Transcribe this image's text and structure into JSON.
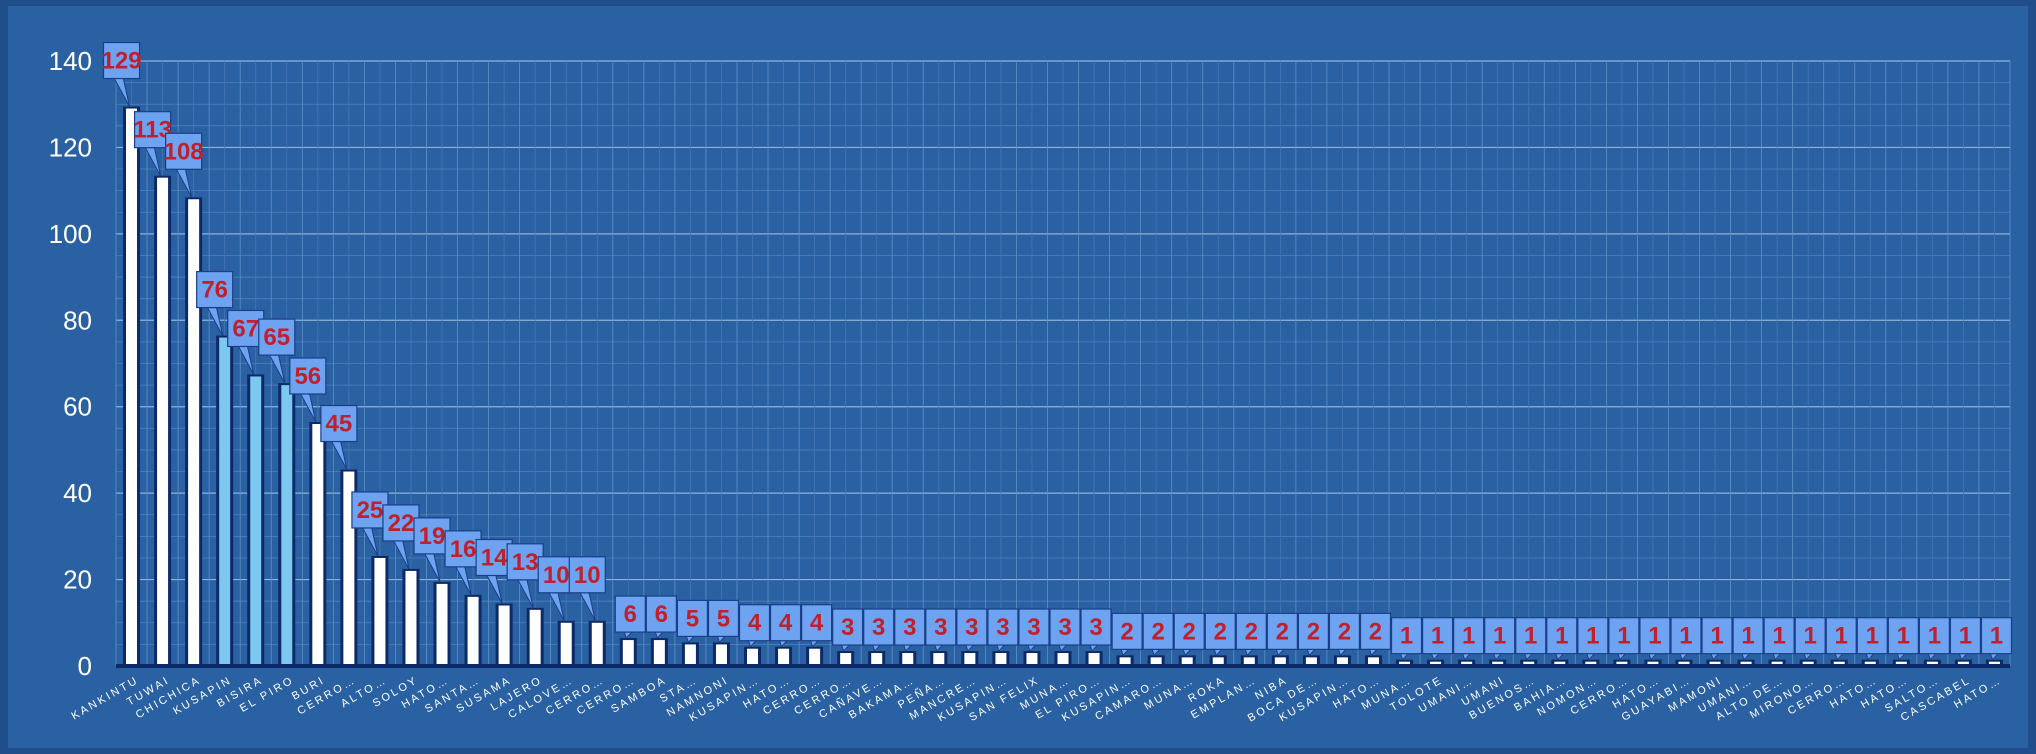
{
  "chart_data": {
    "type": "bar",
    "title": "",
    "xlabel": "",
    "ylabel": "",
    "ylim": [
      0,
      140
    ],
    "yticks": [
      0,
      20,
      40,
      60,
      80,
      100,
      120,
      140
    ],
    "grid": true,
    "legend": "none",
    "colors": {
      "background": "#2a61a3",
      "frame": "#1f4e8a",
      "bar_fill": "#ffffff",
      "bar_highlight_fill": "#7cc8f0",
      "bar_edge": "#0d2a66",
      "label_box": "#6ea3f2",
      "label_text": "#c0202c",
      "axis_text": "#ffffff"
    },
    "highlighted_categories": [
      "KUSAPIN",
      "BISIRA",
      "EL PIRO"
    ],
    "categories": [
      "KANKINTU",
      "TUWAI",
      "CHICHICA",
      "KUSAPIN",
      "BISIRA",
      "EL PIRO",
      "BURI",
      "CERRO…",
      "ALTO…",
      "SOLOY",
      "HATO…",
      "SANTA…",
      "SUSAMA",
      "LAJERO",
      "CALOVE…",
      "CERRO…",
      "CERRO…",
      "SAMBOA",
      "STA…",
      "NAMNONI",
      "KUSAPIN…",
      "HATO…",
      "CERRO…",
      "CERRO…",
      "CAÑAVE…",
      "BAKAMA…",
      "PEÑA…",
      "MANCRE…",
      "KUSAPIN…",
      "SAN FELIX",
      "MUNA…",
      "EL PIRO…",
      "KUSAPIN…",
      "CAMARO…",
      "MUNA…",
      "ROKA",
      "EMPLAN…",
      "NIBA",
      "BOCA DE…",
      "KUSAPIN…",
      "HATO…",
      "MUNA…",
      "TOLOTE",
      "UMANI…",
      "UMANI",
      "BUENOS…",
      "BAHIA…",
      "NOMON…",
      "CERRO…",
      "HATO…",
      "GUAYABI…",
      "MAMONI",
      "UMANI…",
      "ALTO DE…",
      "MIRONO…",
      "CERRO…",
      "HATO…",
      "HATO…",
      "SALTO…",
      "CASCABEL",
      "HATO…"
    ],
    "values": [
      129,
      113,
      108,
      76,
      67,
      65,
      56,
      45,
      25,
      22,
      19,
      16,
      14,
      13,
      10,
      10,
      6,
      6,
      5,
      5,
      4,
      4,
      4,
      3,
      3,
      3,
      3,
      3,
      3,
      3,
      3,
      3,
      2,
      2,
      2,
      2,
      2,
      2,
      2,
      2,
      2,
      1,
      1,
      1,
      1,
      1,
      1,
      1,
      1,
      1,
      1,
      1,
      1,
      1,
      1,
      1,
      1,
      1,
      1,
      1,
      1
    ]
  }
}
